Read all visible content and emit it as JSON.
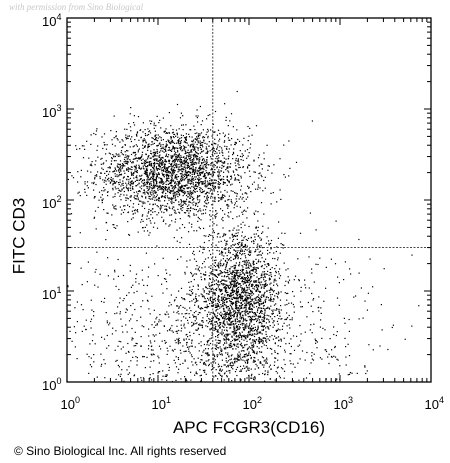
{
  "watermark": "with permission from Sino Biological",
  "copyright": "© Sino Biological Inc. All rights reserved",
  "chart_data": {
    "type": "scatter",
    "xlabel": "APC FCGR3(CD16)",
    "ylabel": "FITC CD3",
    "xscale": "log",
    "yscale": "log",
    "xlim": [
      1,
      10000
    ],
    "ylim": [
      1,
      10000
    ],
    "x_ticks": [
      {
        "base": "10",
        "exp": "0"
      },
      {
        "base": "10",
        "exp": "1"
      },
      {
        "base": "10",
        "exp": "2"
      },
      {
        "base": "10",
        "exp": "3"
      },
      {
        "base": "10",
        "exp": "4"
      }
    ],
    "y_ticks": [
      {
        "base": "10",
        "exp": "0"
      },
      {
        "base": "10",
        "exp": "1"
      },
      {
        "base": "10",
        "exp": "2"
      },
      {
        "base": "10",
        "exp": "3"
      },
      {
        "base": "10",
        "exp": "4"
      }
    ],
    "gate_lines": {
      "x": 40,
      "y": 30
    },
    "populations": [
      {
        "center": [
          15,
          200
        ],
        "spread_decades": [
          0.42,
          0.26
        ],
        "approx_events": 2600
      },
      {
        "center": [
          80,
          8
        ],
        "spread_decades": [
          0.22,
          0.38
        ],
        "approx_events": 1900
      },
      {
        "center": [
          40,
          3
        ],
        "spread_decades": [
          0.8,
          0.5
        ],
        "approx_events": 1400
      }
    ],
    "dot_color": "#000000"
  }
}
